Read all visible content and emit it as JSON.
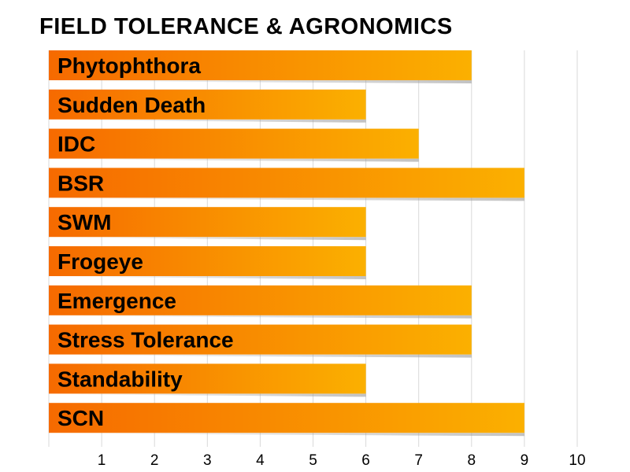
{
  "chart_data": {
    "type": "bar",
    "orientation": "horizontal",
    "title": "FIELD TOLERANCE & AGRONOMICS",
    "categories": [
      "Phytophthora",
      "Sudden Death",
      "IDC",
      "BSR",
      "SWM",
      "Frogeye",
      "Emergence",
      "Stress Tolerance",
      "Standability",
      "SCN"
    ],
    "values": [
      8,
      6,
      7,
      9,
      6,
      6,
      8,
      8,
      6,
      9
    ],
    "xticks": [
      1,
      2,
      3,
      4,
      5,
      6,
      7,
      8,
      9,
      10
    ],
    "xlim": [
      0,
      10
    ],
    "grid": true,
    "legend": "none",
    "colors": {
      "bar_start": "#f66a00",
      "bar_end": "#fbb000",
      "grid": "#d9d9d9",
      "text": "#000000"
    }
  }
}
